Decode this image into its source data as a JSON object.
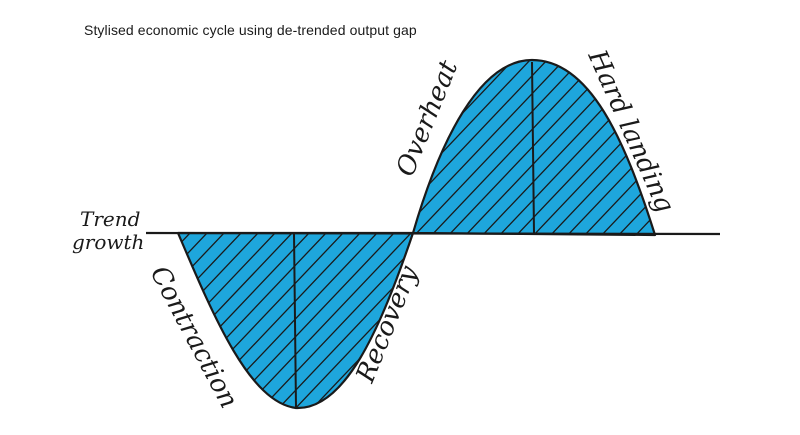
{
  "title": "Stylised economic cycle using de-trended output gap",
  "labels": {
    "trend_line_1": "Trend",
    "trend_line_2": "growth",
    "contraction": "Contraction",
    "recovery": "Recovery",
    "overheat": "Overheat",
    "hard_landing": "Hard landing"
  },
  "colors": {
    "fill": "#1ea6dc",
    "ink": "#1a1a1a"
  }
}
